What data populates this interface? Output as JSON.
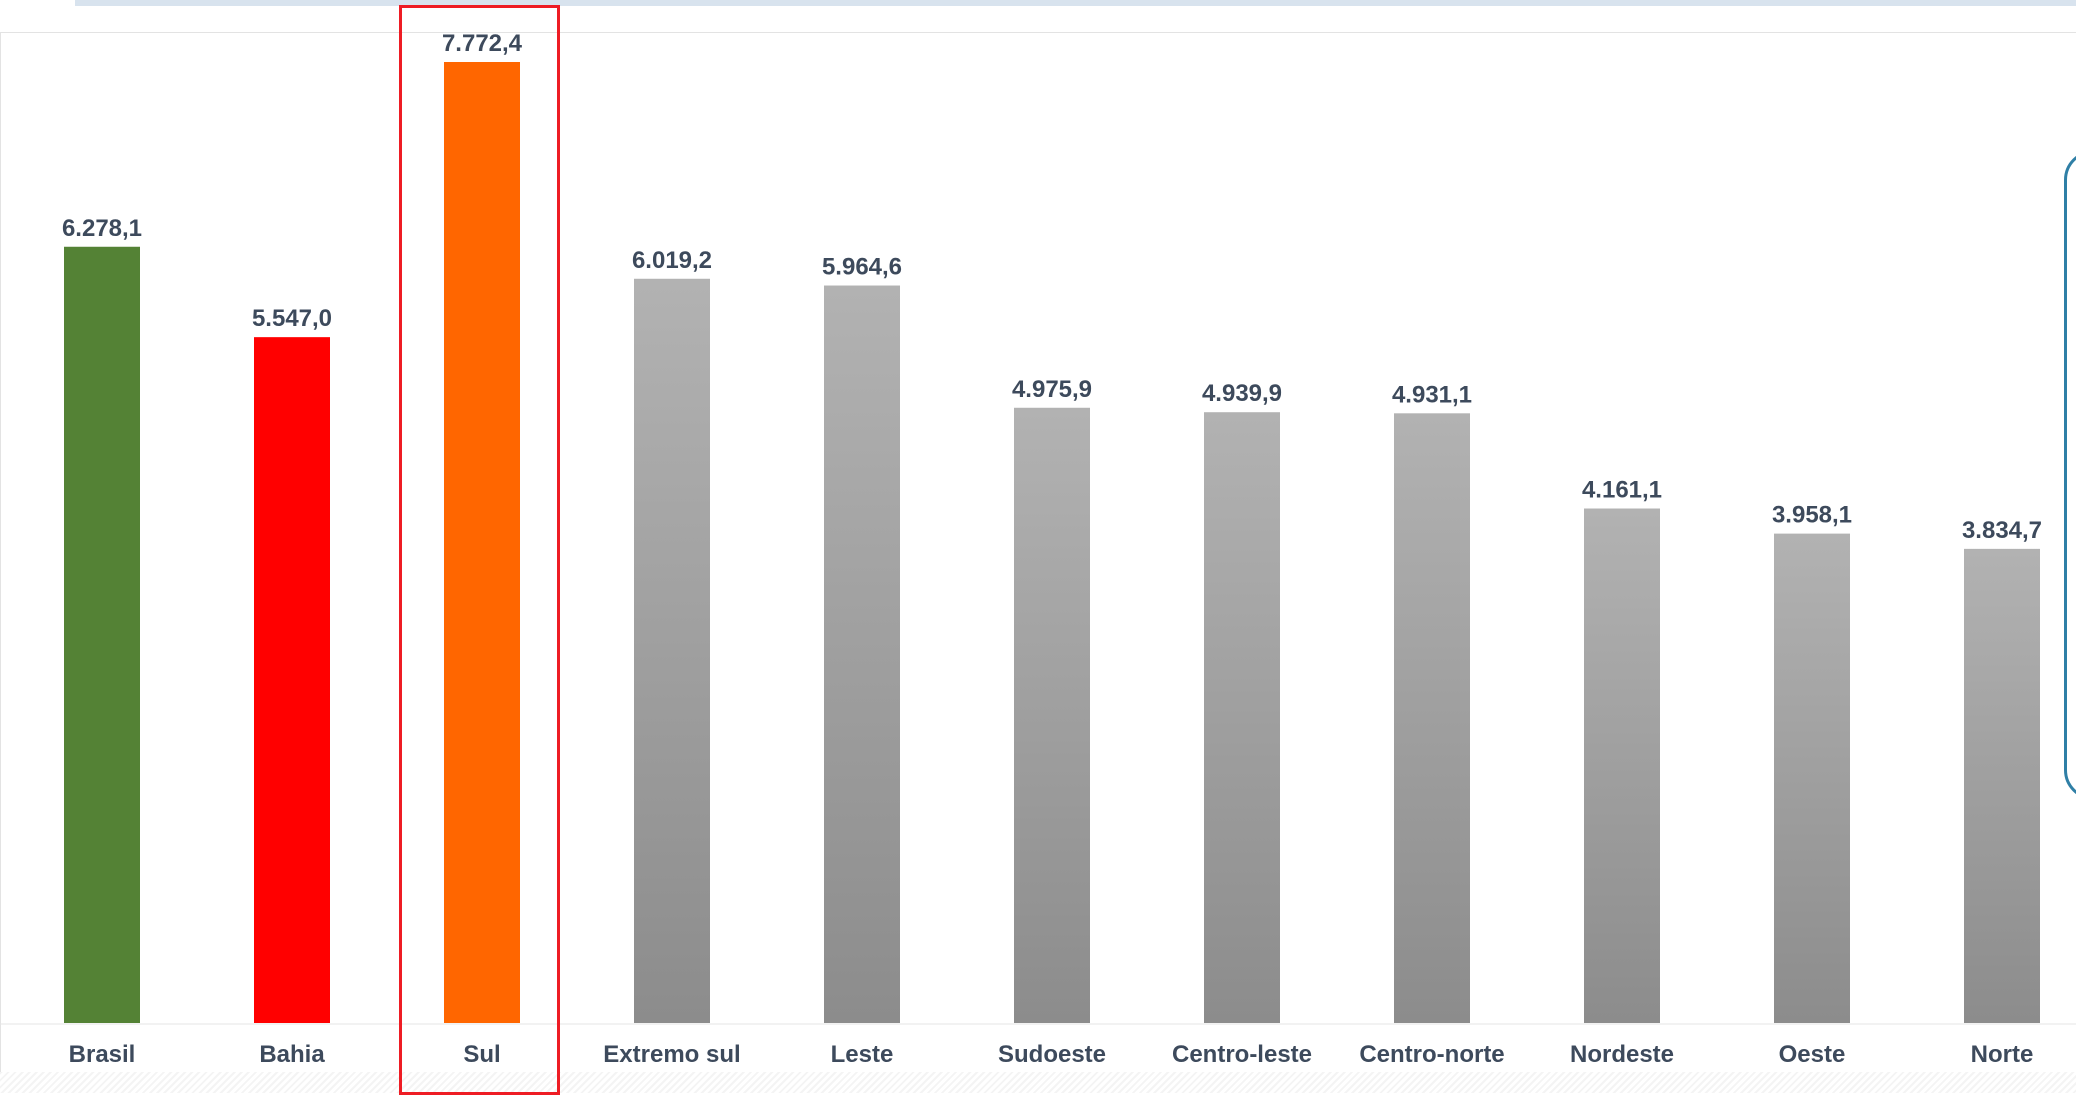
{
  "chart_data": {
    "type": "bar",
    "title": "",
    "xlabel": "",
    "ylabel": "",
    "ylim": [
      0,
      7900
    ],
    "grid": false,
    "legend": "none",
    "categories": [
      "Brasil",
      "Bahia",
      "Sul",
      "Extremo sul",
      "Leste",
      "Sudoeste",
      "Centro-leste",
      "Centro-norte",
      "Nordeste",
      "Oeste",
      "Norte"
    ],
    "values": [
      6278.1,
      5547.0,
      7772.4,
      6019.2,
      5964.6,
      4975.9,
      4939.9,
      4931.1,
      4161.1,
      3958.1,
      3834.7
    ],
    "value_labels": [
      "6.278,1",
      "5.547,0",
      "7.772,4",
      "6.019,2",
      "5.964,6",
      "4.975,9",
      "4.939,9",
      "4.931,1",
      "4.161,1",
      "3.958,1",
      "3.834,7"
    ],
    "colors": [
      "#548235",
      "#ff0000",
      "#ff6600",
      "gray",
      "gray",
      "gray",
      "gray",
      "gray",
      "gray",
      "gray",
      "gray"
    ],
    "highlighted_category": "Sul",
    "highlight_color": "#ee1c24"
  }
}
